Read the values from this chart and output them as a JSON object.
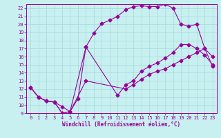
{
  "xlabel": "Windchill (Refroidissement éolien,°C)",
  "xlim": [
    -0.5,
    23.5
  ],
  "ylim": [
    9,
    22.5
  ],
  "yticks": [
    9,
    10,
    11,
    12,
    13,
    14,
    15,
    16,
    17,
    18,
    19,
    20,
    21,
    22
  ],
  "xticks": [
    0,
    1,
    2,
    3,
    4,
    5,
    6,
    7,
    8,
    9,
    10,
    11,
    12,
    13,
    14,
    15,
    16,
    17,
    18,
    19,
    20,
    21,
    22,
    23
  ],
  "line_color": "#990099",
  "bg_color": "#c8f0f0",
  "grid_color": "#aadddd",
  "line_upper_x": [
    0,
    1,
    2,
    3,
    4,
    5,
    6,
    7,
    8,
    9,
    10,
    11,
    12,
    13,
    14,
    15,
    16,
    17,
    18,
    19,
    20,
    21,
    22,
    23
  ],
  "line_upper_y": [
    12.2,
    11.0,
    10.5,
    10.4,
    9.8,
    9.2,
    10.8,
    17.2,
    18.9,
    20.1,
    20.5,
    21.0,
    21.8,
    22.2,
    22.3,
    22.2,
    22.2,
    22.5,
    22.0,
    20.0,
    19.8,
    20.0,
    17.0,
    16.0
  ],
  "line_mid_x": [
    0,
    1,
    2,
    3,
    4,
    5,
    7,
    11,
    12,
    13,
    14,
    15,
    16,
    17,
    18,
    19,
    20,
    21,
    22,
    23
  ],
  "line_mid_y": [
    12.2,
    11.0,
    10.5,
    10.4,
    9.0,
    9.2,
    17.2,
    11.2,
    12.5,
    13.0,
    14.2,
    14.8,
    15.2,
    15.8,
    16.5,
    17.5,
    17.5,
    17.0,
    16.2,
    15.0
  ],
  "line_lower_x": [
    0,
    1,
    2,
    3,
    4,
    5,
    7,
    12,
    13,
    14,
    15,
    16,
    17,
    18,
    19,
    20,
    21,
    22,
    23
  ],
  "line_lower_y": [
    12.2,
    11.0,
    10.5,
    10.4,
    9.0,
    9.2,
    13.0,
    12.0,
    12.5,
    13.2,
    13.8,
    14.2,
    14.5,
    15.0,
    15.5,
    16.0,
    16.5,
    17.0,
    14.8
  ]
}
